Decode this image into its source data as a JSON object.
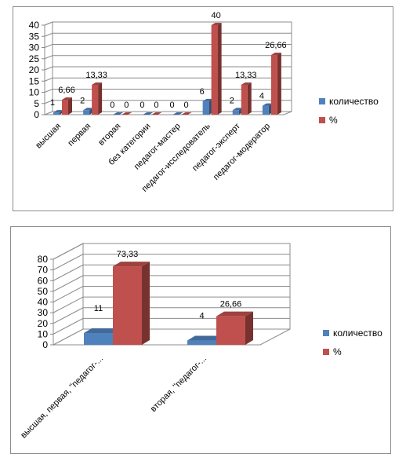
{
  "chart_data": [
    {
      "type": "bar",
      "categories": [
        "высшая",
        "первая",
        "вторая",
        "без категории",
        "педагог-мастер",
        "педагог-исследователь",
        "педагог-эксперт",
        "педагог-модератор"
      ],
      "series": [
        {
          "name": "количество",
          "values": [
            1,
            2,
            0,
            0,
            0,
            6,
            2,
            4
          ],
          "labels": [
            "1",
            "2",
            "0",
            "0",
            "0",
            "6",
            "2",
            "4"
          ],
          "color": "#4f81bd"
        },
        {
          "name": "%",
          "values": [
            6.66,
            13.33,
            0,
            0,
            0,
            40,
            13.33,
            26.66
          ],
          "labels": [
            "6,66",
            "13,33",
            "0",
            "0",
            "0",
            "40",
            "13,33",
            "26,66"
          ],
          "color": "#c0504d"
        }
      ],
      "yticks": [
        "0",
        "5",
        "10",
        "15",
        "20",
        "25",
        "30",
        "35",
        "40"
      ],
      "ylim": [
        0,
        40
      ],
      "grid": true,
      "legend": "right",
      "title": "",
      "xlabel": "",
      "ylabel": ""
    },
    {
      "type": "bar",
      "categories": [
        "высшая, первая, \"педагог-...",
        "вторая, \"педагог-..."
      ],
      "series": [
        {
          "name": "количество",
          "values": [
            11,
            4
          ],
          "labels": [
            "11",
            "4"
          ],
          "color": "#4f81bd"
        },
        {
          "name": "%",
          "values": [
            73.33,
            26.66
          ],
          "labels": [
            "73,33",
            "26,66"
          ],
          "color": "#c0504d"
        }
      ],
      "yticks": [
        "0",
        "10",
        "20",
        "30",
        "40",
        "50",
        "60",
        "70",
        "80"
      ],
      "ylim": [
        0,
        80
      ],
      "grid": true,
      "legend": "right",
      "title": "",
      "xlabel": "",
      "ylabel": ""
    }
  ]
}
